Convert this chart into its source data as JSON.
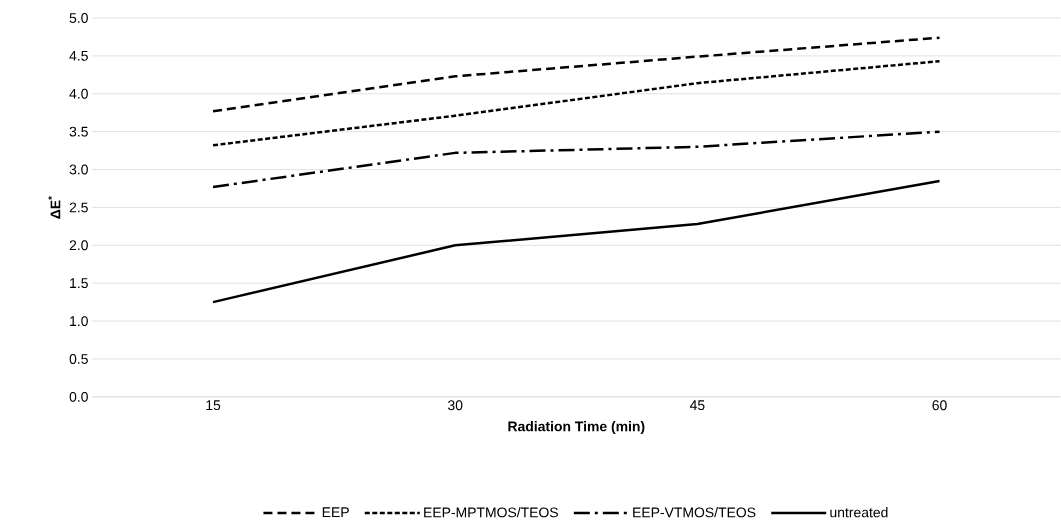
{
  "chart_data": {
    "type": "line",
    "xlabel": "Radiation Time (min)",
    "ylabel": "ΔE$^{*}$",
    "categories": [
      "15",
      "30",
      "45",
      "60"
    ],
    "ylim": [
      0,
      5
    ],
    "yticks": [
      {
        "value": 0,
        "label": "0.0"
      },
      {
        "value": 0.5,
        "label": "0.5"
      },
      {
        "value": 1,
        "label": "1.0"
      },
      {
        "value": 1.5,
        "label": "1.5"
      },
      {
        "value": 2,
        "label": "2.0"
      },
      {
        "value": 2.5,
        "label": "2.5"
      },
      {
        "value": 3,
        "label": "3.0"
      },
      {
        "value": 3.5,
        "label": "3.5"
      },
      {
        "value": 4,
        "label": "4.0"
      },
      {
        "value": 4.5,
        "label": "4.5"
      },
      {
        "value": 5,
        "label": "5.0"
      }
    ],
    "grid": "y",
    "legend": "bottom",
    "marker": "none",
    "series": [
      {
        "name": "EEP",
        "color": "#000000",
        "line_style": "dashed",
        "values": [
          3.77,
          4.23,
          4.49,
          4.74
        ]
      },
      {
        "name": "EEP-MPTMOS/TEOS",
        "color": "#000000",
        "line_style": "dotted",
        "values": [
          3.32,
          3.71,
          4.14,
          4.43
        ]
      },
      {
        "name": "EEP-VTMOS/TEOS",
        "color": "#000000",
        "line_style": "dashdot",
        "values": [
          2.77,
          3.22,
          3.3,
          3.5
        ]
      },
      {
        "name": "untreated",
        "color": "#000000",
        "line_style": "solid",
        "values": [
          1.25,
          2.0,
          2.28,
          2.85
        ]
      }
    ]
  }
}
